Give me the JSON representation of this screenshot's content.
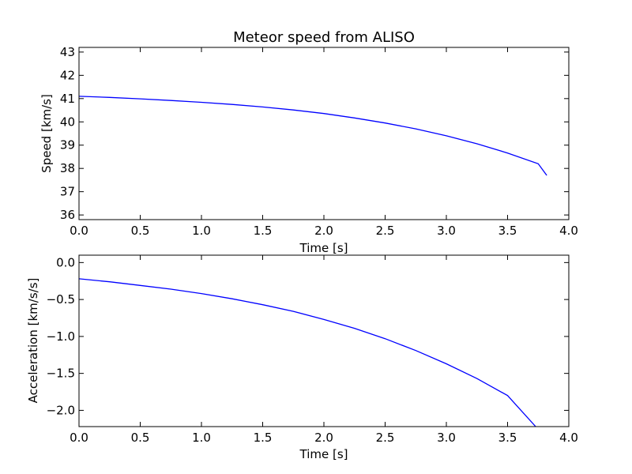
{
  "chart_data": [
    {
      "type": "line",
      "title": "Meteor speed from  ALISO",
      "xlabel": "Time [s]",
      "ylabel": "Speed [km/s]",
      "xlim": [
        0,
        4
      ],
      "ylim": [
        35.8,
        43.2
      ],
      "xticks": [
        "0.0",
        "0.5",
        "1.0",
        "1.5",
        "2.0",
        "2.5",
        "3.0",
        "3.5",
        "4.0"
      ],
      "yticks": [
        "36",
        "37",
        "38",
        "39",
        "40",
        "41",
        "42",
        "43"
      ],
      "grid": false,
      "color": "#0000ff",
      "series": [
        {
          "x": [
            0.0,
            0.25,
            0.5,
            0.75,
            1.0,
            1.25,
            1.5,
            1.75,
            2.0,
            2.25,
            2.5,
            2.75,
            3.0,
            3.25,
            3.5,
            3.75,
            3.82
          ],
          "y": [
            41.1,
            41.05,
            40.99,
            40.92,
            40.84,
            40.75,
            40.64,
            40.51,
            40.36,
            40.17,
            39.95,
            39.7,
            39.4,
            39.06,
            38.66,
            38.2,
            37.7
          ]
        }
      ]
    },
    {
      "type": "line",
      "title": "",
      "xlabel": "Time [s]",
      "ylabel": "Acceleration [km/s/s]",
      "xlim": [
        0,
        4
      ],
      "ylim": [
        -2.22,
        0.1
      ],
      "xticks": [
        "0.0",
        "0.5",
        "1.0",
        "1.5",
        "2.0",
        "2.5",
        "3.0",
        "3.5",
        "4.0"
      ],
      "yticks": [
        "0.0",
        "−0.5",
        "−1.0",
        "−1.5",
        "−2.0"
      ],
      "ytick_values": [
        0.0,
        -0.5,
        -1.0,
        -1.5,
        -2.0
      ],
      "grid": false,
      "color": "#0000ff",
      "series": [
        {
          "x": [
            0.0,
            0.25,
            0.5,
            0.75,
            1.0,
            1.25,
            1.5,
            1.75,
            2.0,
            2.25,
            2.5,
            2.75,
            3.0,
            3.25,
            3.5,
            3.73
          ],
          "y": [
            -0.22,
            -0.26,
            -0.31,
            -0.36,
            -0.42,
            -0.49,
            -0.57,
            -0.66,
            -0.77,
            -0.89,
            -1.03,
            -1.19,
            -1.37,
            -1.57,
            -1.8,
            -2.22
          ]
        }
      ]
    }
  ]
}
